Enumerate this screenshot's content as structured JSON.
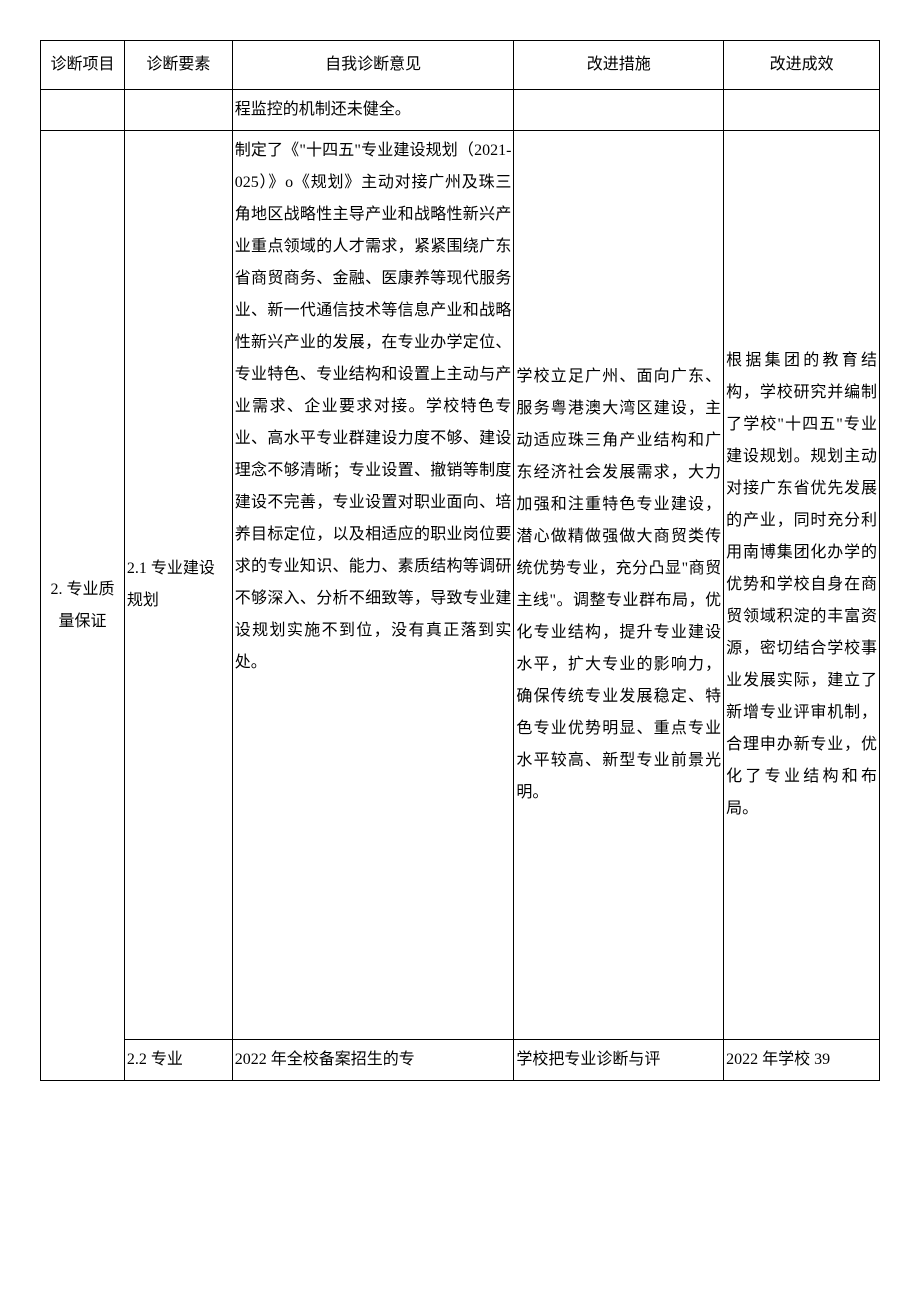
{
  "columns": {
    "item": "诊断项目",
    "factor": "诊断要素",
    "opinion": "自我诊断意见",
    "measure": "改进措施",
    "effect": "改进成效"
  },
  "rows": {
    "r1": {
      "opinion": "程监控的机制还未健全。"
    },
    "r2": {
      "item": "2. 专业质量保证",
      "factor": "2.1 专业建设规划",
      "opinion": "制定了《\"十四五\"专业建设规划（2021-025）》o《规划》主动对接广州及珠三角地区战略性主导产业和战略性新兴产业重点领域的人才需求，紧紧围绕广东省商贸商务、金融、医康养等现代服务业、新一代通信技术等信息产业和战略性新兴产业的发展，在专业办学定位、专业特色、专业结构和设置上主动与产业需求、企业要求对接。学校特色专业、高水平专业群建设力度不够、建设理念不够清晰；专业设置、撤销等制度建设不完善，专业设置对职业面向、培养目标定位，以及相适应的职业岗位要求的专业知识、能力、素质结构等调研不够深入、分析不细致等，导致专业建设规划实施不到位，没有真正落到实处。",
      "measure": "学校立足广州、面向广东、服务粤港澳大湾区建设，主动适应珠三角产业结构和广东经济社会发展需求，大力加强和注重特色专业建设，潜心做精做强做大商贸类传统优势专业，充分凸显\"商贸主线\"。调整专业群布局，优化专业结构，提升专业建设水平，扩大专业的影响力，确保传统专业发展稳定、特色专业优势明显、重点专业水平较高、新型专业前景光明。",
      "effect": "根据集团的教育结构，学校研究并编制了学校\"十四五\"专业建设规划。规划主动对接广东省优先发展的产业，同时充分利用南博集团化办学的优势和学校自身在商贸领域积淀的丰富资源，密切结合学校事业发展实际，建立了新增专业评审机制，合理申办新专业，优化了专业结构和布局。"
    },
    "r3": {
      "factor": "2.2 专业",
      "opinion": "2022 年全校备案招生的专",
      "measure": "学校把专业诊断与评",
      "effect": "2022 年学校 39"
    }
  }
}
